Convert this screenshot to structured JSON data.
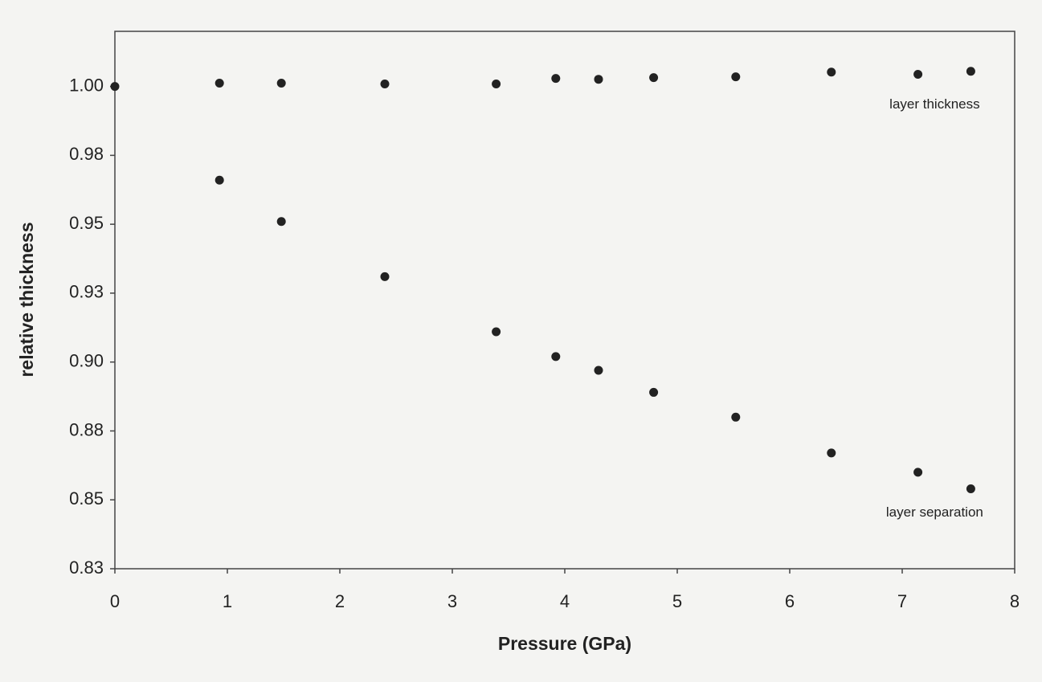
{
  "chart_data": {
    "type": "scatter",
    "x_label": "Pressure (GPa)",
    "y_label": "relative thickness",
    "xlim": [
      0,
      8
    ],
    "xticks": [
      0,
      1,
      2,
      3,
      4,
      5,
      6,
      7,
      8
    ],
    "ylim": [
      0.825,
      1.02
    ],
    "yticks": [
      {
        "value": 0.825,
        "label": "0.83"
      },
      0.85,
      {
        "value": 0.875,
        "label": "0.88"
      },
      {
        "value": 0.9,
        "label": "0.90"
      },
      {
        "value": 0.925,
        "label": "0.93"
      },
      0.95,
      {
        "value": 0.975,
        "label": "0.98"
      },
      {
        "value": 1,
        "label": "1.00"
      }
    ],
    "series": [
      {
        "name": "layer thickness",
        "color": "#222222",
        "x": [
          0,
          0.93,
          1.48,
          2.4,
          3.39,
          3.92,
          4.3,
          4.79,
          5.52,
          6.37,
          7.14,
          7.61
        ],
        "values": [
          1.0,
          1.0012,
          1.0012,
          1.0009,
          1.0009,
          1.0029,
          1.0026,
          1.0032,
          1.0035,
          1.0052,
          1.0044,
          1.0055
        ]
      },
      {
        "name": "layer separation",
        "color": "#222222",
        "x": [
          0.93,
          1.48,
          2.4,
          3.39,
          3.92,
          4.3,
          4.79,
          5.52,
          6.37,
          7.14,
          7.61
        ],
        "values": [
          0.966,
          0.951,
          0.931,
          0.911,
          0.902,
          0.897,
          0.889,
          0.88,
          0.867,
          0.86,
          0.854
        ]
      }
    ]
  }
}
